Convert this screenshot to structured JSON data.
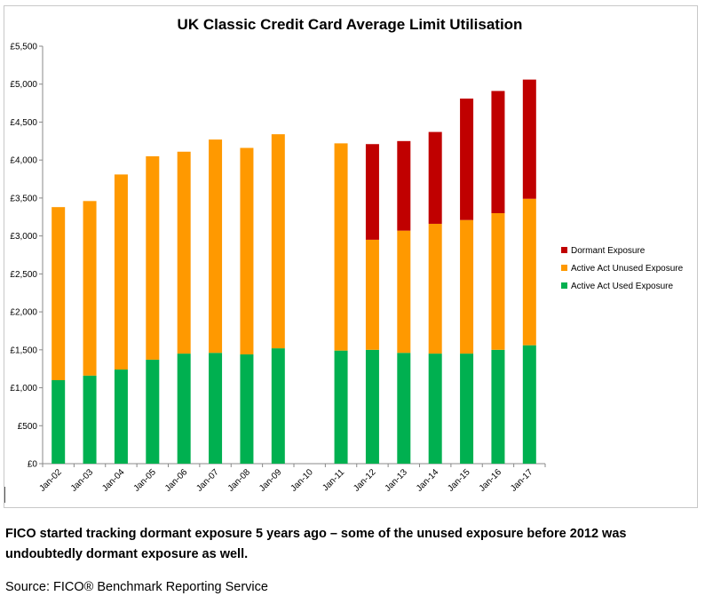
{
  "chart_data": {
    "type": "bar",
    "stacked": true,
    "title": "UK Classic Credit Card Average Limit Utilisation",
    "xlabel": "",
    "ylabel": "",
    "ylim": [
      0,
      5500
    ],
    "ytick_step": 500,
    "yticks": [
      "£0",
      "£500",
      "£1,000",
      "£1,500",
      "£2,000",
      "£2,500",
      "£3,000",
      "£3,500",
      "£4,000",
      "£4,500",
      "£5,000",
      "£5,500"
    ],
    "categories": [
      "Jan-02",
      "Jan-03",
      "Jan-04",
      "Jan-05",
      "Jan-06",
      "Jan-07",
      "Jan-08",
      "Jan-09",
      "Jan-10",
      "Jan-11",
      "Jan-12",
      "Jan-13",
      "Jan-14",
      "Jan-15",
      "Jan-16",
      "Jan-17"
    ],
    "series": [
      {
        "name": "Active Act Used Exposure",
        "color": "#00b050",
        "values": [
          1100,
          1160,
          1240,
          1370,
          1450,
          1460,
          1440,
          1520,
          null,
          1490,
          1500,
          1460,
          1450,
          1450,
          1500,
          1560
        ]
      },
      {
        "name": "Active Act Unused Exposure",
        "color": "#ff9900",
        "values": [
          2280,
          2300,
          2570,
          2680,
          2660,
          2810,
          2720,
          2820,
          null,
          2730,
          1450,
          1610,
          1710,
          1760,
          1800,
          1930
        ]
      },
      {
        "name": "Dormant Exposure",
        "color": "#c00000",
        "values": [
          0,
          0,
          0,
          0,
          0,
          0,
          0,
          0,
          null,
          0,
          1260,
          1180,
          1210,
          1600,
          1610,
          1570
        ]
      }
    ],
    "legend": {
      "position": "right",
      "entries": [
        "Dormant Exposure",
        "Active Act Unused Exposure",
        "Active Act Used Exposure"
      ]
    },
    "grid": false
  },
  "caption": "FICO started tracking dormant exposure 5 years ago – some of the unused exposure before 2012 was undoubtedly dormant exposure as well.",
  "source": "Source: FICO® Benchmark Reporting Service"
}
